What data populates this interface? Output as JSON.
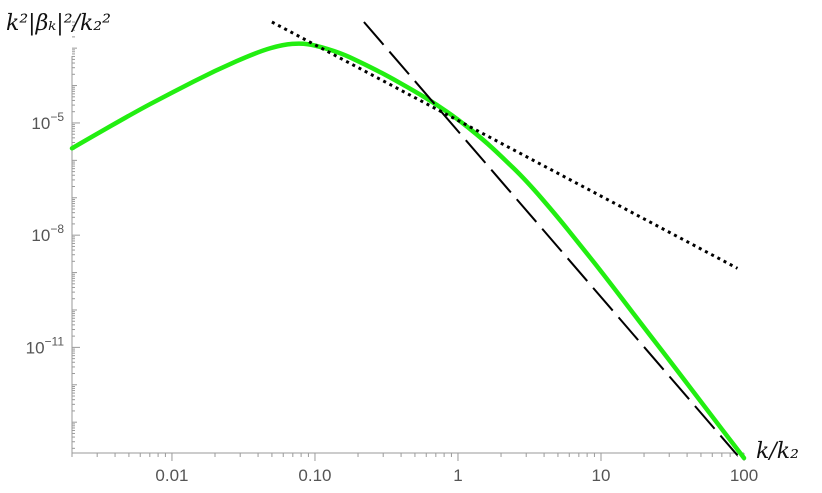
{
  "chart_data": {
    "type": "line",
    "xlabel": "k/k₂",
    "ylabel": "k²|βₖ|²/k₂²",
    "x_scale": "log",
    "y_scale": "log",
    "xlim": [
      0.002,
      100
    ],
    "ylim": [
      1.5e-14,
      0.005
    ],
    "grid": false,
    "legend": "none",
    "x_ticks": [
      {
        "value": 0.01,
        "label": "0.01"
      },
      {
        "value": 0.1,
        "label": "0.10"
      },
      {
        "value": 1,
        "label": "1"
      },
      {
        "value": 10,
        "label": "10"
      },
      {
        "value": 100,
        "label": "100"
      }
    ],
    "y_ticks": [
      {
        "value": 1e-05,
        "base": "10",
        "exp": "−5"
      },
      {
        "value": 1e-08,
        "base": "10",
        "exp": "−8"
      },
      {
        "value": 1e-11,
        "base": "10",
        "exp": "−11"
      }
    ],
    "series": [
      {
        "style": "solid",
        "color": "#22ee11",
        "points": [
          [
            0.002,
            2.1e-06
          ],
          [
            0.005,
            1.6e-05
          ],
          [
            0.01,
            6.5e-05
          ],
          [
            0.02,
            0.00025
          ],
          [
            0.04,
            0.0008
          ],
          [
            0.06,
            0.00125
          ],
          [
            0.08,
            0.00135
          ],
          [
            0.1,
            0.0012
          ],
          [
            0.15,
            0.00075
          ],
          [
            0.2,
            0.00045
          ],
          [
            0.3,
            0.00021
          ],
          [
            0.5,
            7e-05
          ],
          [
            0.7,
            3.2e-05
          ],
          [
            1,
            1.25e-05
          ],
          [
            1.5,
            3.6e-06
          ],
          [
            2,
            1.3e-06
          ],
          [
            3,
            2.9e-07
          ],
          [
            5,
            3e-08
          ],
          [
            7,
            6e-09
          ],
          [
            10,
            1.1e-09
          ],
          [
            20,
            3.4e-11
          ],
          [
            30,
            4.6e-12
          ],
          [
            50,
            3.5e-13
          ],
          [
            100,
            1.1e-14
          ]
        ]
      },
      {
        "style": "dotted",
        "color": "#000000",
        "points": [
          [
            0.05,
            0.005
          ],
          [
            90,
            1.3e-09
          ]
        ]
      },
      {
        "style": "dashed",
        "color": "#000000",
        "points": [
          [
            0.22,
            0.005
          ],
          [
            90,
            1.3e-14
          ]
        ]
      }
    ]
  }
}
